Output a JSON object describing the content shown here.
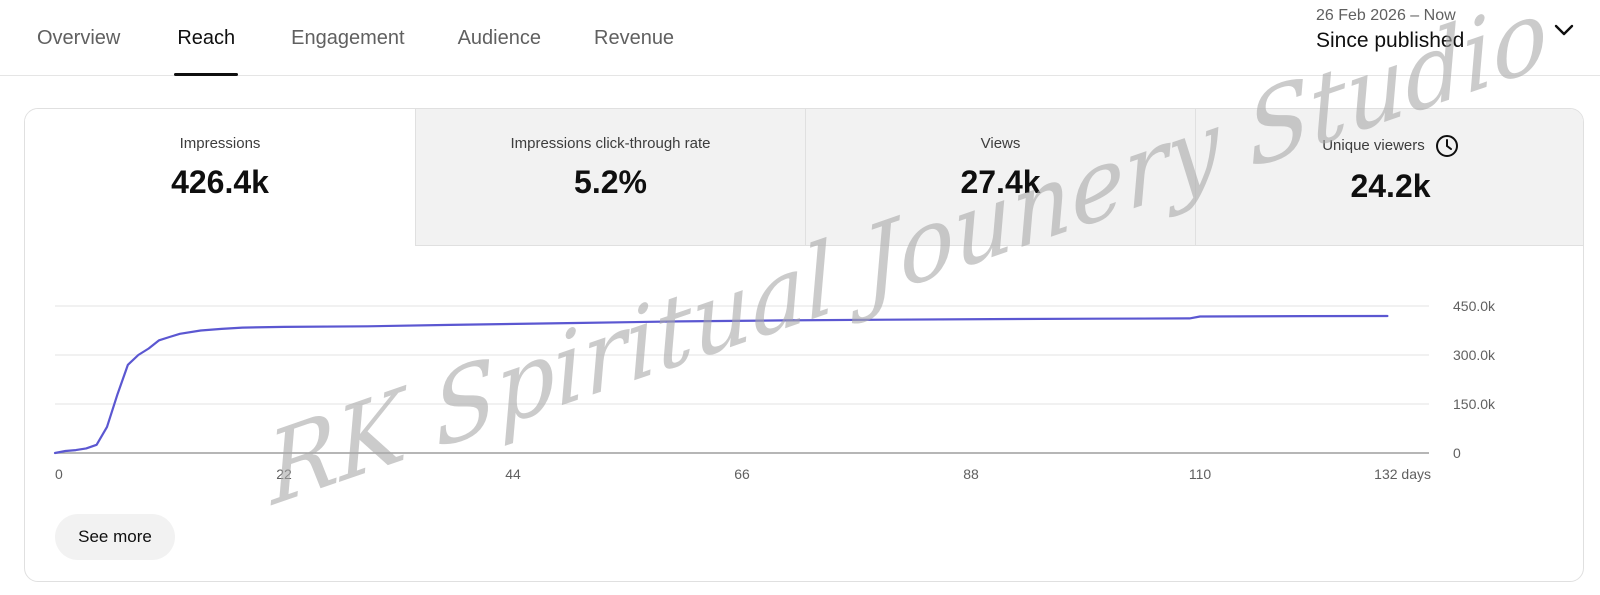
{
  "tabs": [
    {
      "label": "Overview",
      "active": false
    },
    {
      "label": "Reach",
      "active": true
    },
    {
      "label": "Engagement",
      "active": false
    },
    {
      "label": "Audience",
      "active": false
    },
    {
      "label": "Revenue",
      "active": false
    }
  ],
  "date_range": {
    "dates": "26 Feb 2026 – Now",
    "label": "Since published",
    "icon": "chevron-down-icon"
  },
  "metrics": [
    {
      "label": "Impressions",
      "value": "426.4k",
      "selected": true
    },
    {
      "label": "Impressions click-through rate",
      "value": "5.2%",
      "selected": false
    },
    {
      "label": "Views",
      "value": "27.4k",
      "selected": false
    },
    {
      "label": "Unique viewers",
      "value": "24.2k",
      "selected": false,
      "icon": "clock-icon"
    }
  ],
  "chart_data": {
    "type": "line",
    "series": [
      {
        "values": [
          [
            0,
            0
          ],
          [
            1,
            6000
          ],
          [
            2,
            9000
          ],
          [
            3,
            14000
          ],
          [
            4,
            25000
          ],
          [
            5,
            80000
          ],
          [
            6,
            180000
          ],
          [
            7,
            270000
          ],
          [
            8,
            300000
          ],
          [
            9,
            320000
          ],
          [
            10,
            345000
          ],
          [
            11,
            355000
          ],
          [
            12,
            365000
          ],
          [
            14,
            375000
          ],
          [
            16,
            380000
          ],
          [
            18,
            384000
          ],
          [
            22,
            386000
          ],
          [
            30,
            388000
          ],
          [
            38,
            392000
          ],
          [
            50,
            398000
          ],
          [
            60,
            403000
          ],
          [
            70,
            406000
          ],
          [
            80,
            408000
          ],
          [
            90,
            410000
          ],
          [
            100,
            411000
          ],
          [
            109,
            412000
          ],
          [
            110,
            418000
          ],
          [
            120,
            419000
          ],
          [
            128,
            419500
          ]
        ]
      }
    ],
    "x_ticks": [
      "0",
      "22",
      "44",
      "66",
      "88",
      "110",
      "132 days"
    ],
    "x_tick_values": [
      0,
      22,
      44,
      66,
      88,
      110,
      132
    ],
    "y_ticks": [
      "0",
      "150.0k",
      "300.0k",
      "450.0k"
    ],
    "y_tick_values": [
      0,
      150000,
      300000,
      450000
    ],
    "xlim": [
      0,
      132
    ],
    "ylim": [
      0,
      450000
    ],
    "grid": true,
    "line_color": "#5b57d1"
  },
  "see_more_label": "See more",
  "watermark": "RK Spiritual Jounery Studio"
}
